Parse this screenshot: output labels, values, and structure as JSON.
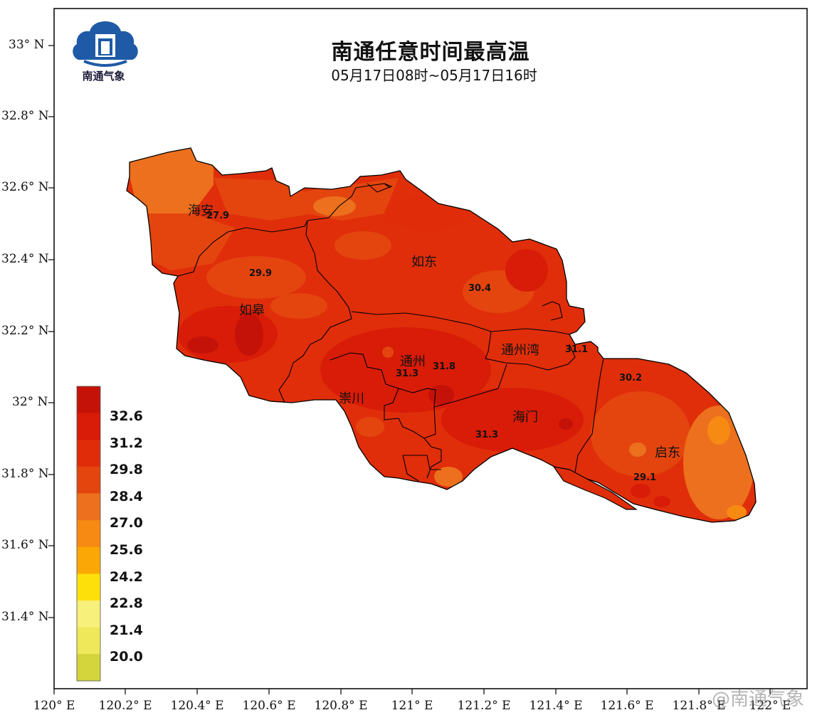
{
  "title": "南通任意时间最高温",
  "subtitle": "05月17日08时~05月17日16时",
  "logo": {
    "text": "南通气象"
  },
  "axes": {
    "y_ticks": [
      "33° N",
      "32.8° N",
      "32.6° N",
      "32.4° N",
      "32.2° N",
      "32° N",
      "31.8° N",
      "31.6° N",
      "31.4° N"
    ],
    "x_ticks": [
      "120° E",
      "120.2° E",
      "120.4° E",
      "120.6° E",
      "120.8° E",
      "121° E",
      "121.2° E",
      "121.4° E",
      "121.6° E",
      "121.8° E",
      "122° E"
    ]
  },
  "legend": {
    "labels": [
      "32.6",
      "31.2",
      "29.8",
      "28.4",
      "27.0",
      "25.6",
      "24.2",
      "22.8",
      "21.4",
      "20.0"
    ],
    "colors": [
      "#c41208",
      "#d81c08",
      "#e12c0a",
      "#e4450f",
      "#ec701d",
      "#f68a13",
      "#fba806",
      "#fde009",
      "#f7f07a",
      "#eee85a",
      "#d4d43c"
    ]
  },
  "districts": [
    {
      "name": "海安"
    },
    {
      "name": "如东"
    },
    {
      "name": "如皋"
    },
    {
      "name": "通州"
    },
    {
      "name": "通州湾"
    },
    {
      "name": "崇川"
    },
    {
      "name": "海门"
    },
    {
      "name": "启东"
    }
  ],
  "values": [
    "27.9",
    "29.9",
    "30.4",
    "31.3",
    "31.8",
    "31.1",
    "30.2",
    "31.3",
    "29.1"
  ],
  "watermark": "@南通气象"
}
